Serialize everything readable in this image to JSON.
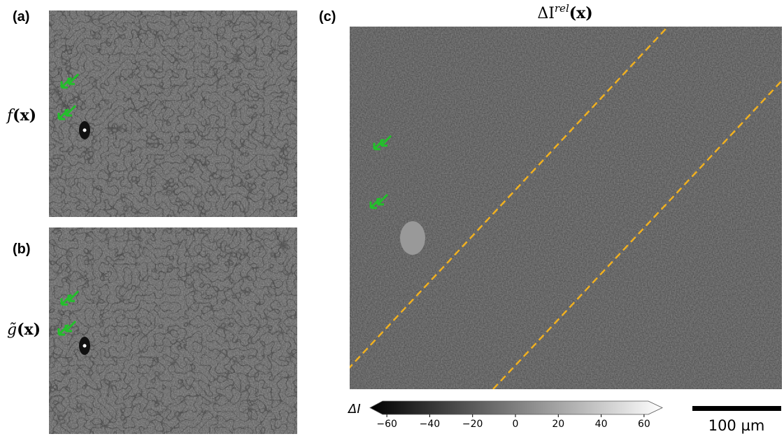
{
  "panels": [
    {
      "tag": "(a)",
      "label": {
        "base": "f",
        "argument": "(x)"
      }
    },
    {
      "tag": "(b)",
      "label": {
        "base": "g̃",
        "argument": "(x)"
      }
    },
    {
      "tag": "(c)",
      "title": {
        "base": "ΔI",
        "superscript": "rel",
        "argument": "(x)"
      }
    }
  ],
  "colorbar": {
    "label": "ΔI",
    "lim": [
      -62,
      62
    ],
    "ticks": [
      {
        "value": -60,
        "label": "−60"
      },
      {
        "value": -40,
        "label": "−40"
      },
      {
        "value": -20,
        "label": "−20"
      },
      0,
      20,
      40,
      60
    ]
  },
  "scale_bar": {
    "label": "100 µm"
  }
}
